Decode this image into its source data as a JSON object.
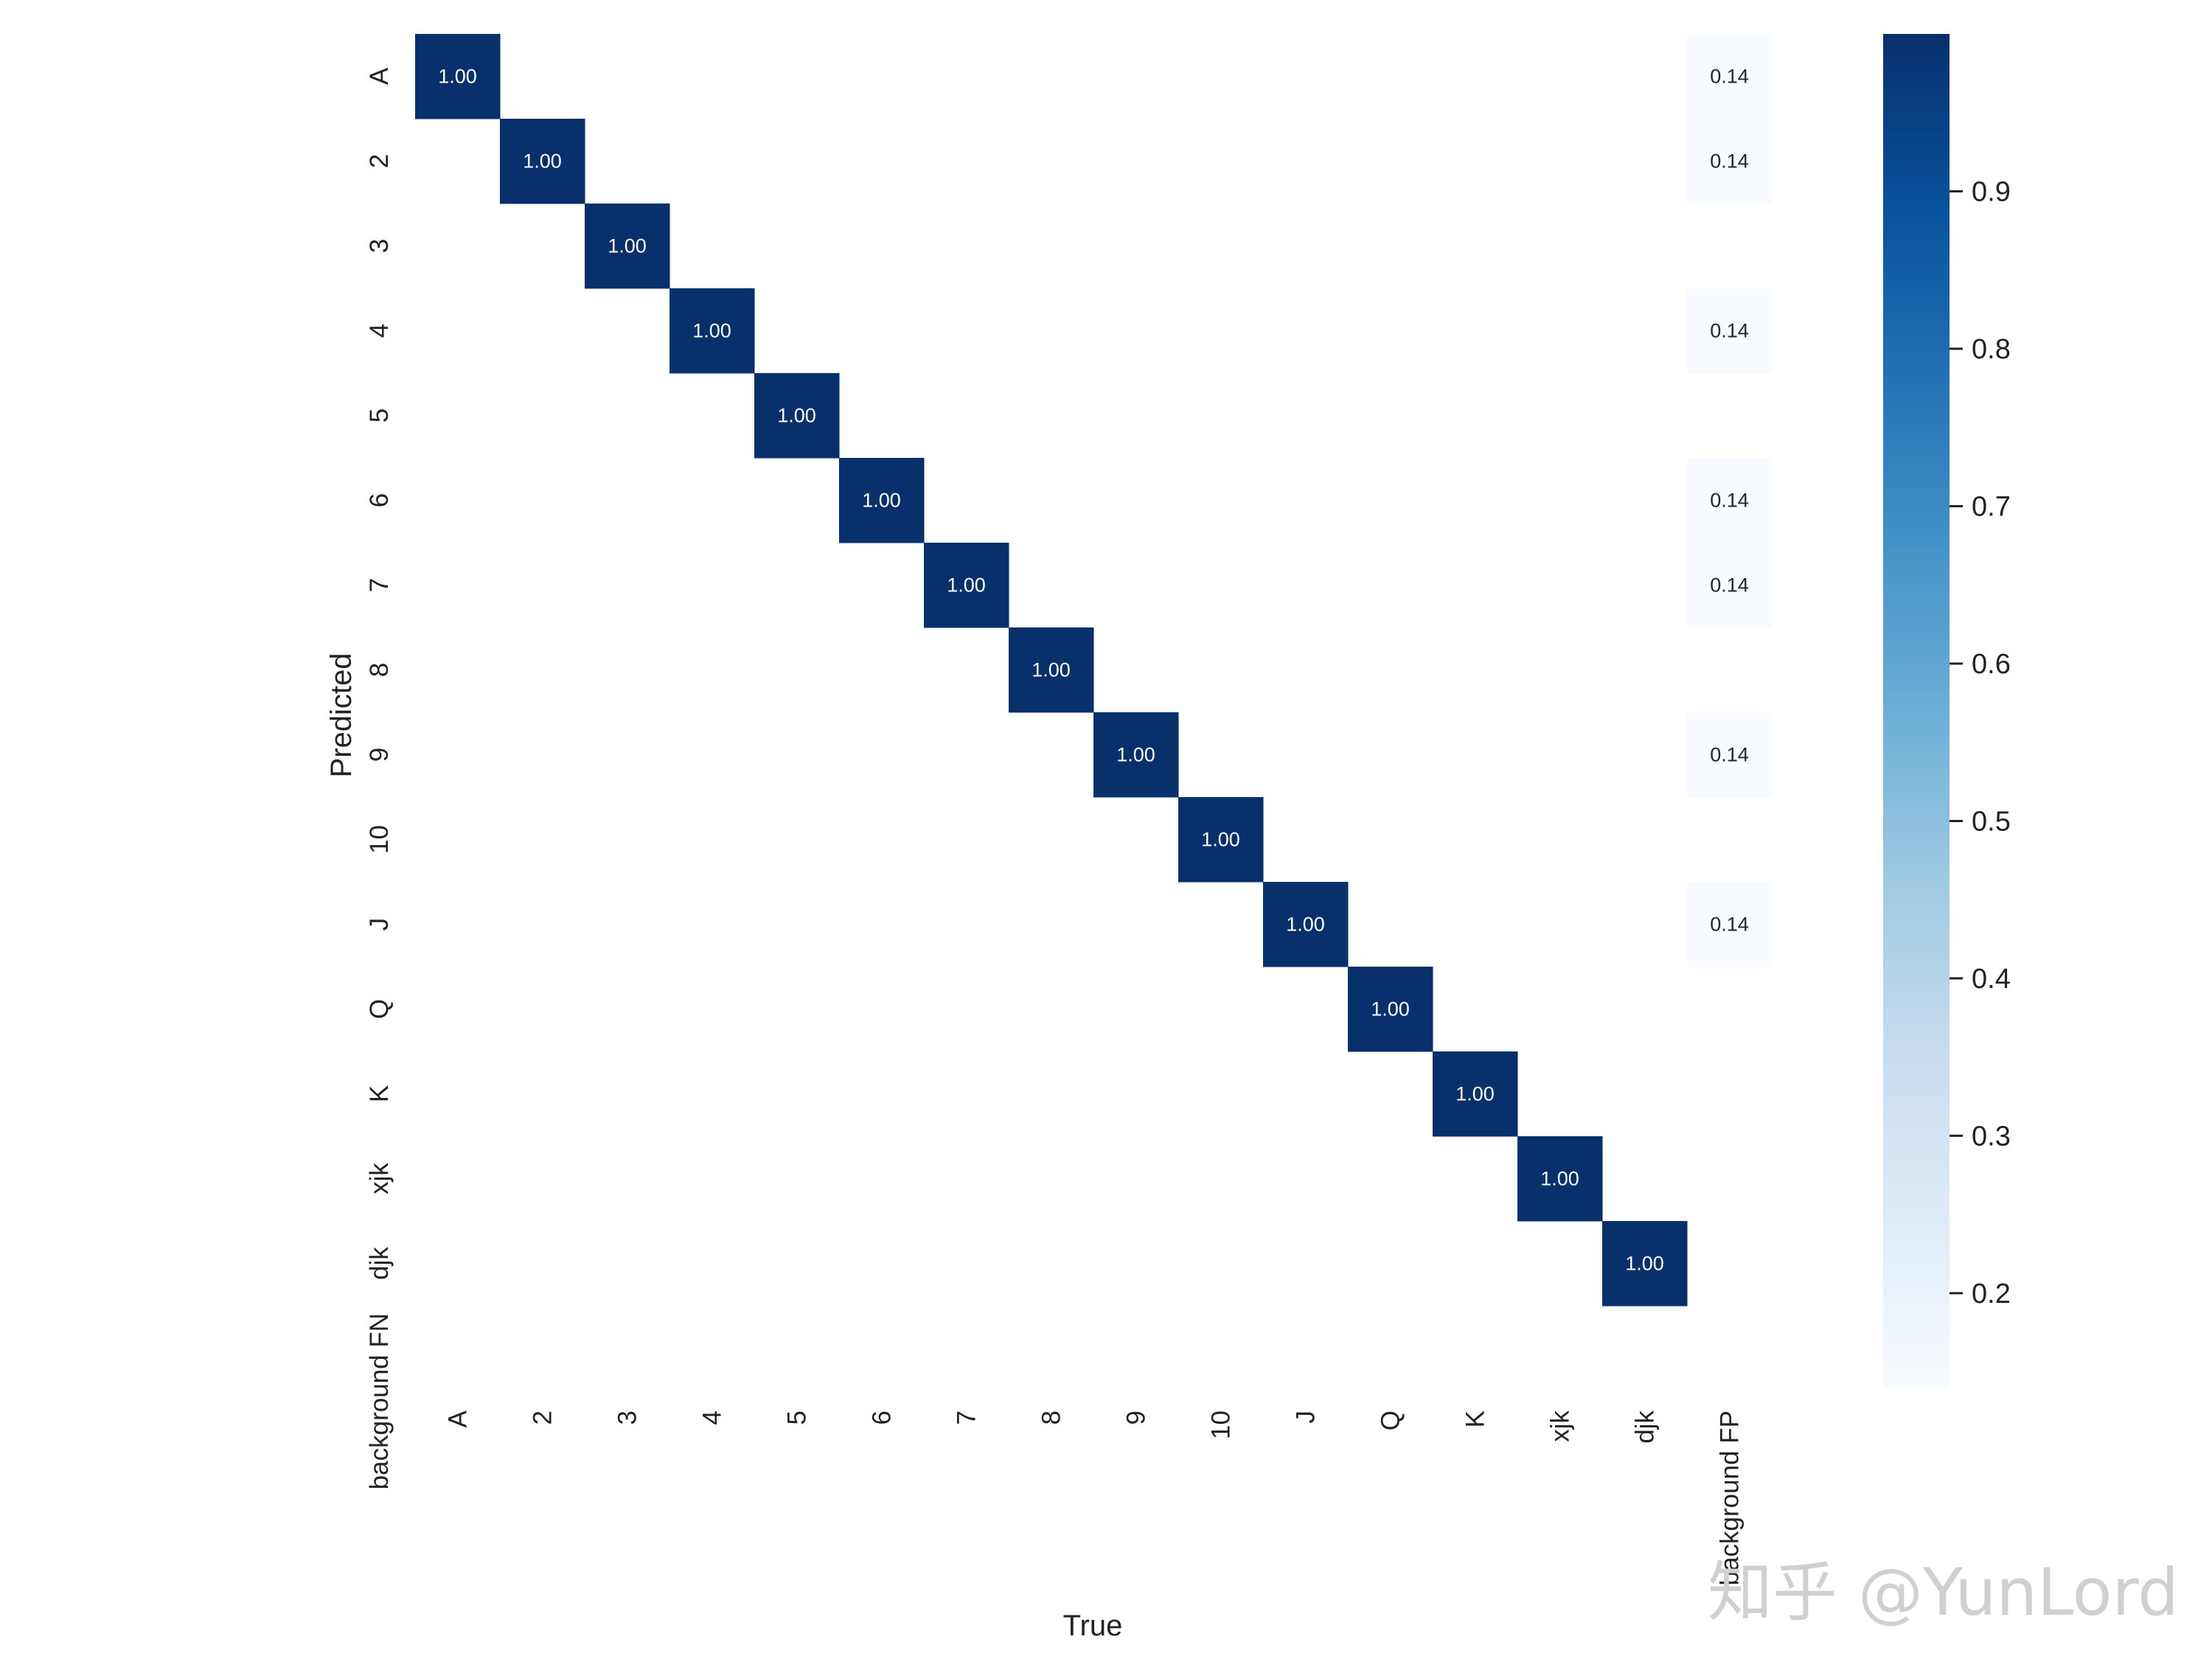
{
  "chart_data": {
    "type": "heatmap",
    "title": "",
    "xlabel": "True",
    "ylabel": "Predicted",
    "x_categories": [
      "A",
      "2",
      "3",
      "4",
      "5",
      "6",
      "7",
      "8",
      "9",
      "10",
      "J",
      "Q",
      "K",
      "xjk",
      "djk",
      "background FP"
    ],
    "y_categories": [
      "A",
      "2",
      "3",
      "4",
      "5",
      "6",
      "7",
      "8",
      "9",
      "10",
      "J",
      "Q",
      "K",
      "xjk",
      "djk",
      "background FN"
    ],
    "values": [
      [
        1.0,
        null,
        null,
        null,
        null,
        null,
        null,
        null,
        null,
        null,
        null,
        null,
        null,
        null,
        null,
        0.14
      ],
      [
        null,
        1.0,
        null,
        null,
        null,
        null,
        null,
        null,
        null,
        null,
        null,
        null,
        null,
        null,
        null,
        0.14
      ],
      [
        null,
        null,
        1.0,
        null,
        null,
        null,
        null,
        null,
        null,
        null,
        null,
        null,
        null,
        null,
        null,
        null
      ],
      [
        null,
        null,
        null,
        1.0,
        null,
        null,
        null,
        null,
        null,
        null,
        null,
        null,
        null,
        null,
        null,
        0.14
      ],
      [
        null,
        null,
        null,
        null,
        1.0,
        null,
        null,
        null,
        null,
        null,
        null,
        null,
        null,
        null,
        null,
        null
      ],
      [
        null,
        null,
        null,
        null,
        null,
        1.0,
        null,
        null,
        null,
        null,
        null,
        null,
        null,
        null,
        null,
        0.14
      ],
      [
        null,
        null,
        null,
        null,
        null,
        null,
        1.0,
        null,
        null,
        null,
        null,
        null,
        null,
        null,
        null,
        0.14
      ],
      [
        null,
        null,
        null,
        null,
        null,
        null,
        null,
        1.0,
        null,
        null,
        null,
        null,
        null,
        null,
        null,
        null
      ],
      [
        null,
        null,
        null,
        null,
        null,
        null,
        null,
        null,
        1.0,
        null,
        null,
        null,
        null,
        null,
        null,
        0.14
      ],
      [
        null,
        null,
        null,
        null,
        null,
        null,
        null,
        null,
        null,
        1.0,
        null,
        null,
        null,
        null,
        null,
        null
      ],
      [
        null,
        null,
        null,
        null,
        null,
        null,
        null,
        null,
        null,
        null,
        1.0,
        null,
        null,
        null,
        null,
        0.14
      ],
      [
        null,
        null,
        null,
        null,
        null,
        null,
        null,
        null,
        null,
        null,
        null,
        1.0,
        null,
        null,
        null,
        null
      ],
      [
        null,
        null,
        null,
        null,
        null,
        null,
        null,
        null,
        null,
        null,
        null,
        null,
        1.0,
        null,
        null,
        null
      ],
      [
        null,
        null,
        null,
        null,
        null,
        null,
        null,
        null,
        null,
        null,
        null,
        null,
        null,
        1.0,
        null,
        null
      ],
      [
        null,
        null,
        null,
        null,
        null,
        null,
        null,
        null,
        null,
        null,
        null,
        null,
        null,
        null,
        1.0,
        null
      ],
      [
        null,
        null,
        null,
        null,
        null,
        null,
        null,
        null,
        null,
        null,
        null,
        null,
        null,
        null,
        null,
        null
      ]
    ],
    "value_format": "0.00",
    "colormap": "Blues",
    "colors": {
      "low": "#f7fbff",
      "high": "#08306b"
    },
    "colorbar": {
      "range": [
        0.14,
        1.0
      ],
      "ticks": [
        0.2,
        0.3,
        0.4,
        0.5,
        0.6,
        0.7,
        0.8,
        0.9
      ],
      "tick_labels": [
        "0.2",
        "0.3",
        "0.4",
        "0.5",
        "0.6",
        "0.7",
        "0.8",
        "0.9"
      ]
    },
    "grid": false
  },
  "watermark": {
    "text": "知乎 @YunLord"
  }
}
